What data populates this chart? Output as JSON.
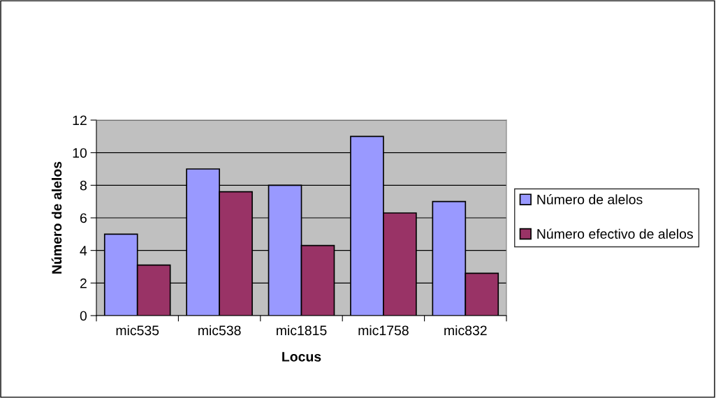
{
  "chart_data": {
    "type": "bar",
    "xlabel": "Locus",
    "ylabel": "Número de alelos",
    "categories": [
      "mic535",
      "mic538",
      "mic1815",
      "mic1758",
      "mic832"
    ],
    "series": [
      {
        "name": "Número de alelos",
        "color": "#9999ff",
        "values": [
          5,
          9,
          8,
          11,
          7
        ]
      },
      {
        "name": "Número efectivo de alelos",
        "color": "#993366",
        "values": [
          3.1,
          7.6,
          4.3,
          6.3,
          2.6
        ]
      }
    ],
    "ylim": [
      0,
      12
    ],
    "yticks": [
      0,
      2,
      4,
      6,
      8,
      10,
      12
    ],
    "grid": "y",
    "legend": "right"
  }
}
